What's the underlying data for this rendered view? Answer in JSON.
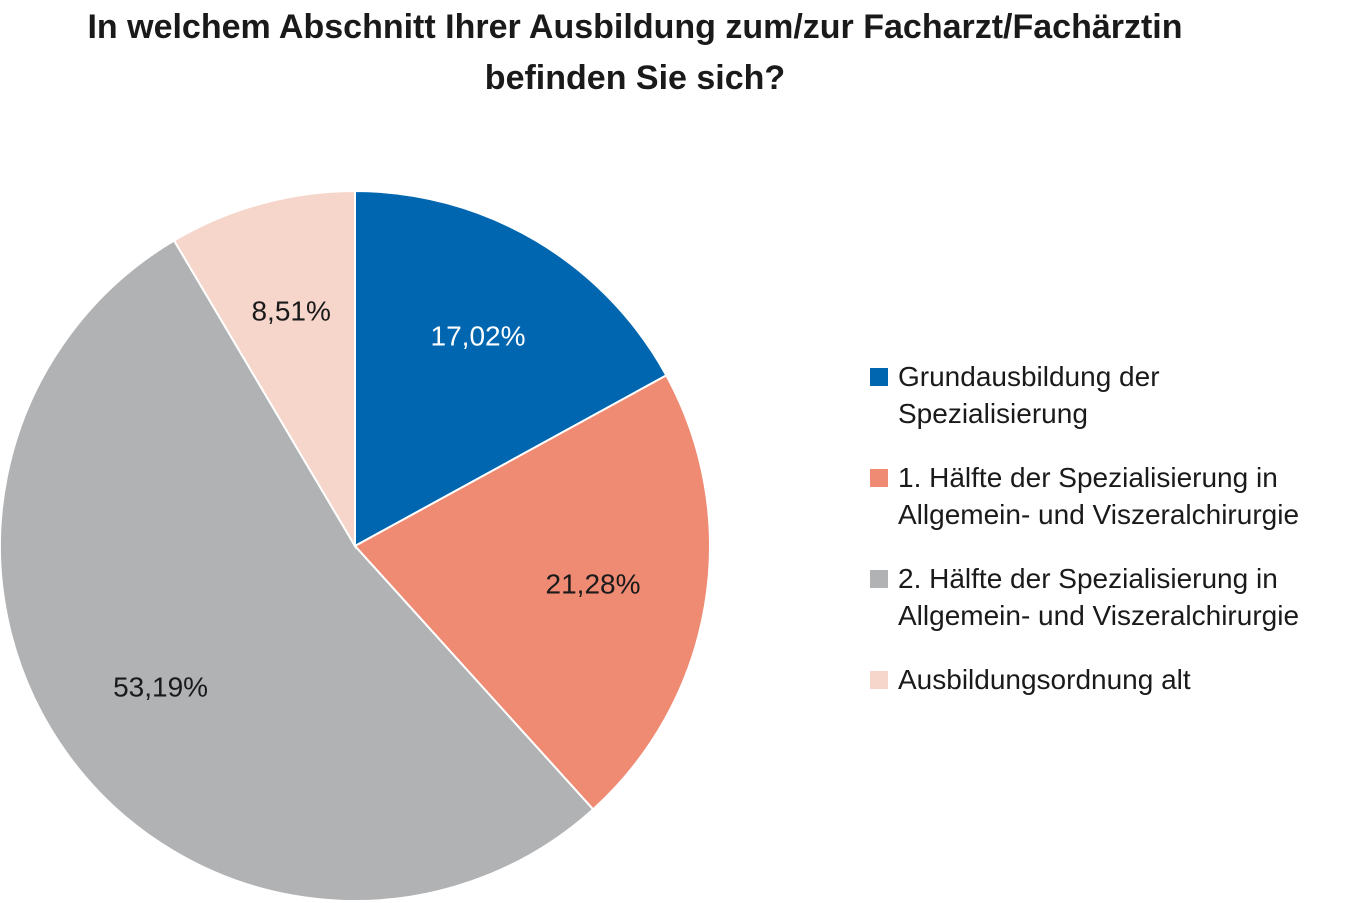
{
  "chart_data": {
    "type": "pie",
    "title_lines": [
      "In welchem Abschnitt Ihrer Ausbildung zum/zur Facharzt/Fachärztin",
      "befinden Sie sich?"
    ],
    "slices": [
      {
        "label_lines": [
          "Grundausbildung der",
          "Spezialisierung"
        ],
        "value": 17.02,
        "display": "17,02%",
        "color": "#0066b0",
        "text_color": "#ffffff"
      },
      {
        "label_lines": [
          "1. Hälfte der Spezialisierung in",
          "Allgemein- und Viszeralchirurgie"
        ],
        "value": 21.28,
        "display": "21,28%",
        "color": "#ef8a73",
        "text_color": "#1a1a1a"
      },
      {
        "label_lines": [
          "2. Hälfte der Spezialisierung in",
          "Allgemein- und Viszeralchirurgie"
        ],
        "value": 53.19,
        "display": "53,19%",
        "color": "#b1b2b4",
        "text_color": "#1a1a1a"
      },
      {
        "label_lines": [
          "Ausbildungsordnung alt"
        ],
        "value": 8.51,
        "display": "8,51%",
        "color": "#f6d6ca",
        "text_color": "#1a1a1a"
      }
    ],
    "legend_position": "right"
  }
}
